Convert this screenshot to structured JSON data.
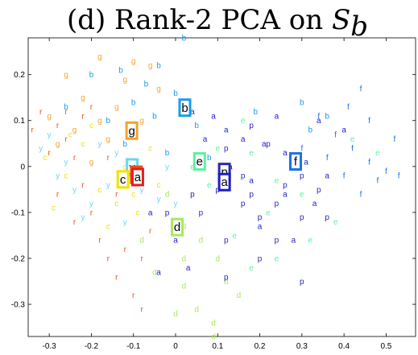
{
  "chart_data": {
    "type": "scatter",
    "title_main": "(d) Rank-2 PCA on ",
    "title_symbol": "S",
    "title_subscript": "b",
    "xlabel": "",
    "ylabel": "",
    "xlim": [
      -0.35,
      0.57
    ],
    "ylim": [
      -0.37,
      0.28
    ],
    "xticks": [
      -0.3,
      -0.2,
      -0.1,
      0,
      0.1,
      0.2,
      0.3,
      0.4,
      0.5
    ],
    "xtick_labels": [
      "-0.3",
      "-0.2",
      "-0.1",
      "0",
      "0.1",
      "0.2",
      "0.3",
      "0.4",
      "0.5"
    ],
    "yticks": [
      -0.3,
      -0.2,
      -0.1,
      0,
      0.1,
      0.2
    ],
    "ytick_labels": [
      "-0.3",
      "-0.2",
      "-0.1",
      "0",
      "0.1",
      "0.2"
    ],
    "grid": false,
    "legend": "none",
    "series": [
      {
        "letter": "a",
        "color": "#1c1cc8",
        "points": [
          [
            0.04,
            0.12
          ],
          [
            0.09,
            0.11
          ],
          [
            0.12,
            0.08
          ],
          [
            0.16,
            0.06
          ],
          [
            0.21,
            0.05
          ],
          [
            0.26,
            0.03
          ],
          [
            0.31,
            0.01
          ],
          [
            0.36,
            -0.02
          ],
          [
            0.18,
            -0.03
          ],
          [
            0.26,
            -0.06
          ],
          [
            0.33,
            -0.08
          ],
          [
            0.2,
            -0.13
          ],
          [
            0.28,
            -0.16
          ],
          [
            0.03,
            -0.22
          ],
          [
            -0.04,
            -0.23
          ],
          [
            0.13,
            0.0
          ],
          [
            0.07,
            0.06
          ],
          [
            0.24,
            0.11
          ],
          [
            0.34,
            0.1
          ],
          [
            0.4,
            0.08
          ],
          [
            -0.06,
            -0.1
          ],
          [
            0.0,
            -0.16
          ]
        ]
      },
      {
        "letter": "b",
        "color": "#1a9de6",
        "points": [
          [
            0.02,
            0.28
          ],
          [
            -0.13,
            0.21
          ],
          [
            -0.07,
            0.18
          ],
          [
            -0.2,
            0.2
          ],
          [
            -0.1,
            0.14
          ],
          [
            -0.05,
            0.11
          ],
          [
            -0.16,
            0.1
          ],
          [
            0.0,
            0.16
          ],
          [
            -0.26,
            0.13
          ],
          [
            -0.02,
            0.03
          ],
          [
            0.08,
            0.02
          ],
          [
            -0.12,
            0.05
          ],
          [
            0.3,
            0.14
          ],
          [
            0.36,
            0.11
          ],
          [
            0.32,
            0.08
          ],
          [
            0.19,
            0.12
          ],
          [
            0.05,
            0.09
          ],
          [
            -0.04,
            0.22
          ]
        ]
      },
      {
        "letter": "c",
        "color": "#f0e200",
        "points": [
          [
            -0.31,
            0.02
          ],
          [
            -0.26,
            -0.02
          ],
          [
            -0.22,
            0.05
          ],
          [
            -0.18,
            -0.05
          ],
          [
            -0.14,
            -0.08
          ],
          [
            -0.09,
            -0.1
          ],
          [
            -0.04,
            -0.04
          ],
          [
            -0.2,
            0.09
          ],
          [
            -0.12,
            0.0
          ],
          [
            -0.29,
            -0.09
          ],
          [
            -0.16,
            -0.13
          ],
          [
            -0.06,
            0.04
          ],
          [
            -0.25,
            0.07
          ],
          [
            -0.1,
            -0.06
          ]
        ]
      },
      {
        "letter": "d",
        "color": "#a8e85a",
        "points": [
          [
            0.02,
            -0.13
          ],
          [
            0.06,
            -0.16
          ],
          [
            0.1,
            -0.2
          ],
          [
            0.12,
            -0.25
          ],
          [
            0.15,
            -0.28
          ],
          [
            0.02,
            -0.26
          ],
          [
            0.05,
            -0.31
          ],
          [
            0.0,
            -0.32
          ],
          [
            -0.05,
            -0.23
          ],
          [
            0.09,
            -0.34
          ],
          [
            0.09,
            -0.37
          ],
          [
            -0.02,
            -0.06
          ],
          [
            -0.08,
            -0.16
          ],
          [
            0.02,
            -0.2
          ]
        ]
      },
      {
        "letter": "e",
        "color": "#5ef0a0",
        "points": [
          [
            0.1,
            0.04
          ],
          [
            0.18,
            0.03
          ],
          [
            0.24,
            -0.03
          ],
          [
            0.3,
            -0.06
          ],
          [
            0.22,
            -0.1
          ],
          [
            0.32,
            -0.16
          ],
          [
            0.24,
            -0.2
          ],
          [
            0.18,
            -0.22
          ],
          [
            0.14,
            -0.15
          ],
          [
            0.28,
            0.0
          ],
          [
            0.42,
            0.06
          ],
          [
            0.48,
            0.03
          ],
          [
            0.38,
            -0.12
          ],
          [
            0.04,
            0.0
          ],
          [
            0.16,
            0.1
          ],
          [
            0.08,
            -0.04
          ]
        ]
      },
      {
        "letter": "f",
        "color": "#1a73e6",
        "points": [
          [
            0.34,
            0.11
          ],
          [
            0.38,
            0.07
          ],
          [
            0.42,
            0.04
          ],
          [
            0.46,
            0.01
          ],
          [
            0.5,
            -0.01
          ],
          [
            0.53,
            -0.02
          ],
          [
            0.44,
            -0.06
          ],
          [
            0.48,
            -0.03
          ],
          [
            0.4,
            -0.02
          ],
          [
            0.36,
            0.02
          ],
          [
            0.3,
            0.04
          ],
          [
            0.46,
            0.1
          ],
          [
            0.41,
            0.13
          ],
          [
            0.52,
            0.06
          ],
          [
            0.44,
            0.17
          ]
        ]
      },
      {
        "letter": "g",
        "color": "#f2a42e",
        "points": [
          [
            -0.18,
            0.24
          ],
          [
            -0.1,
            0.23
          ],
          [
            -0.26,
            0.2
          ],
          [
            -0.22,
            0.15
          ],
          [
            -0.14,
            0.13
          ],
          [
            -0.3,
            0.11
          ],
          [
            -0.24,
            0.08
          ],
          [
            -0.16,
            0.06
          ],
          [
            -0.08,
            0.1
          ],
          [
            -0.2,
            0.01
          ],
          [
            -0.28,
            0.05
          ],
          [
            -0.12,
            0.19
          ],
          [
            -0.04,
            0.17
          ],
          [
            -0.06,
            0.22
          ],
          [
            -0.18,
            0.1
          ]
        ]
      },
      {
        "letter": "p",
        "color": "#2828b4",
        "points": [
          [
            0.1,
            -0.05
          ],
          [
            0.16,
            -0.08
          ],
          [
            0.2,
            -0.11
          ],
          [
            0.24,
            -0.16
          ],
          [
            0.3,
            -0.11
          ],
          [
            0.36,
            -0.11
          ],
          [
            0.18,
            -0.06
          ],
          [
            0.26,
            -0.04
          ],
          [
            0.3,
            -0.02
          ],
          [
            0.12,
            0.04
          ],
          [
            0.18,
            0.09
          ],
          [
            0.22,
            0.05
          ],
          [
            0.06,
            -0.1
          ],
          [
            0.12,
            -0.16
          ],
          [
            0.2,
            -0.2
          ],
          [
            0.3,
            -0.25
          ],
          [
            0.12,
            -0.24
          ],
          [
            -0.02,
            -0.1
          ],
          [
            0.04,
            -0.06
          ],
          [
            0.34,
            -0.05
          ],
          [
            0.24,
            -0.08
          ],
          [
            0.16,
            -0.02
          ]
        ]
      },
      {
        "letter": "r",
        "color": "#e8541e",
        "points": [
          [
            -0.32,
            0.12
          ],
          [
            -0.28,
            0.09
          ],
          [
            -0.26,
            0.06
          ],
          [
            -0.3,
            0.03
          ],
          [
            -0.24,
            0.02
          ],
          [
            -0.22,
            -0.04
          ],
          [
            -0.28,
            -0.06
          ],
          [
            -0.16,
            0.02
          ],
          [
            -0.14,
            -0.06
          ],
          [
            -0.2,
            -0.1
          ],
          [
            -0.24,
            -0.12
          ],
          [
            -0.18,
            -0.16
          ],
          [
            -0.12,
            -0.18
          ],
          [
            -0.08,
            -0.2
          ],
          [
            -0.14,
            -0.24
          ],
          [
            -0.1,
            -0.28
          ],
          [
            -0.08,
            -0.31
          ],
          [
            -0.2,
            0.13
          ],
          [
            -0.22,
            0.11
          ],
          [
            -0.26,
            0.12
          ],
          [
            -0.06,
            -0.14
          ],
          [
            -0.16,
            -0.2
          ],
          [
            -0.34,
            0.08
          ]
        ]
      },
      {
        "letter": "y",
        "color": "#6ad6f0",
        "points": [
          [
            -0.3,
            0.07
          ],
          [
            -0.26,
            0.01
          ],
          [
            -0.24,
            -0.05
          ],
          [
            -0.2,
            -0.08
          ],
          [
            -0.14,
            0.03
          ],
          [
            -0.08,
            -0.05
          ],
          [
            -0.1,
            0.0
          ],
          [
            -0.18,
            0.05
          ],
          [
            -0.22,
            -0.11
          ],
          [
            -0.12,
            -0.12
          ],
          [
            -0.04,
            -0.07
          ],
          [
            -0.28,
            -0.02
          ],
          [
            -0.32,
            0.04
          ],
          [
            -0.16,
            -0.04
          ],
          [
            -0.02,
            0.0
          ],
          [
            0.0,
            -0.08
          ]
        ]
      }
    ],
    "highlight_boxes": [
      {
        "letter": "b",
        "x": 0.022,
        "y": 0.128,
        "color": "#1a9de6"
      },
      {
        "letter": "g",
        "x": -0.104,
        "y": 0.078,
        "color": "#f2a42e"
      },
      {
        "letter": "e",
        "x": 0.057,
        "y": 0.011,
        "color": "#5ef0a0"
      },
      {
        "letter": "f",
        "x": 0.285,
        "y": 0.011,
        "color": "#1a73e6"
      },
      {
        "letter": "y",
        "x": -0.103,
        "y": -0.002,
        "color": "#6ad6f0"
      },
      {
        "letter": "c",
        "x": -0.125,
        "y": -0.028,
        "color": "#f0e200"
      },
      {
        "letter": "p",
        "x": -0.093,
        "y": -0.018,
        "color": "#e8541e"
      },
      {
        "letter": "a",
        "x": -0.09,
        "y": -0.023,
        "color": "#e81c1c"
      },
      {
        "letter": "p",
        "x": 0.116,
        "y": -0.012,
        "color": "#2828b4"
      },
      {
        "letter": "a",
        "x": 0.116,
        "y": -0.034,
        "color": "#1c1cc8"
      },
      {
        "letter": "d",
        "x": 0.004,
        "y": -0.132,
        "color": "#a8e85a"
      }
    ]
  }
}
